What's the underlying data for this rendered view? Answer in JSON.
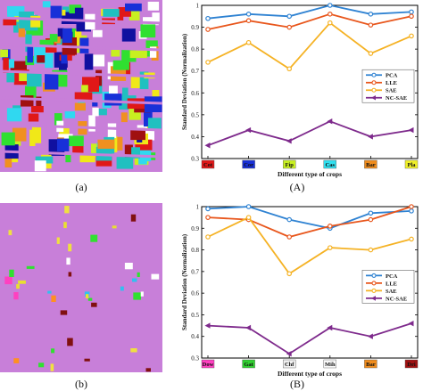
{
  "labels": {
    "a": "(a)",
    "A": "(A)",
    "b": "(b)",
    "B": "(B)"
  },
  "maps": {
    "top": {
      "background": "#c87fd9",
      "palette": [
        "#e01818",
        "#1830d8",
        "#30d8f0",
        "#c8f020",
        "#f0e818",
        "#f09020",
        "#30e030",
        "#ffffff",
        "#1010a0",
        "#a01010",
        "#20c0c0"
      ]
    },
    "bottom": {
      "background": "#c87fd9",
      "palette": [
        "#ff40c0",
        "#30e030",
        "#ff9020",
        "#ffffff",
        "#30c0f0",
        "#f0e040",
        "#801010",
        "#e8e030"
      ]
    }
  },
  "chart_data": [
    {
      "type": "line",
      "xlabel": "Different type of crops",
      "ylabel": "Standard Deviation (Normalization)",
      "ylim": [
        0.3,
        1.0
      ],
      "yticks": [
        "0.3",
        "0.4",
        "0.5",
        "0.6",
        "0.7",
        "0.8",
        "0.9",
        "1"
      ],
      "categories": [
        "Cot",
        "Cor",
        "Fip",
        "Cas",
        "Bar",
        "Pla"
      ],
      "category_colors": [
        "#e01818",
        "#1830d8",
        "#c8f020",
        "#30e0f0",
        "#f08c1c",
        "#f0f028"
      ],
      "legend_position": "center-right",
      "series": [
        {
          "name": "PCA",
          "color": "#2e82d2",
          "marker": "circle",
          "values": [
            0.94,
            0.96,
            0.95,
            1.0,
            0.96,
            0.97
          ]
        },
        {
          "name": "LLE",
          "color": "#e8561c",
          "marker": "circle",
          "values": [
            0.89,
            0.93,
            0.9,
            0.96,
            0.91,
            0.95
          ]
        },
        {
          "name": "SAE",
          "color": "#f5b224",
          "marker": "circle",
          "values": [
            0.74,
            0.83,
            0.71,
            0.92,
            0.78,
            0.86
          ]
        },
        {
          "name": "NC-SAE",
          "color": "#7e2a8c",
          "marker": "triangle",
          "values": [
            0.36,
            0.43,
            0.38,
            0.47,
            0.4,
            0.43
          ]
        }
      ]
    },
    {
      "type": "line",
      "xlabel": "Different type of crops",
      "ylabel": "Standard Deviation (Normalization)",
      "ylim": [
        0.3,
        1.0
      ],
      "yticks": [
        "0.3",
        "0.4",
        "0.5",
        "0.6",
        "0.7",
        "0.8",
        "0.9",
        "1"
      ],
      "categories": [
        "Dow",
        "Gat",
        "Chf",
        "Mih",
        "Bar",
        "Dri"
      ],
      "category_colors": [
        "#ff40c0",
        "#30d030",
        "#f0f0f0",
        "#f8f8f8",
        "#f08c1c",
        "#a01010"
      ],
      "legend_position": "center-right",
      "series": [
        {
          "name": "PCA",
          "color": "#2e82d2",
          "marker": "circle",
          "values": [
            0.99,
            1.0,
            0.94,
            0.9,
            0.97,
            0.98
          ]
        },
        {
          "name": "LLE",
          "color": "#e8561c",
          "marker": "circle",
          "values": [
            0.95,
            0.94,
            0.86,
            0.91,
            0.94,
            1.0
          ]
        },
        {
          "name": "SAE",
          "color": "#f5b224",
          "marker": "circle",
          "values": [
            0.86,
            0.95,
            0.69,
            0.81,
            0.8,
            0.85
          ]
        },
        {
          "name": "NC-SAE",
          "color": "#7e2a8c",
          "marker": "triangle",
          "values": [
            0.45,
            0.44,
            0.32,
            0.44,
            0.4,
            0.46
          ]
        }
      ]
    }
  ]
}
